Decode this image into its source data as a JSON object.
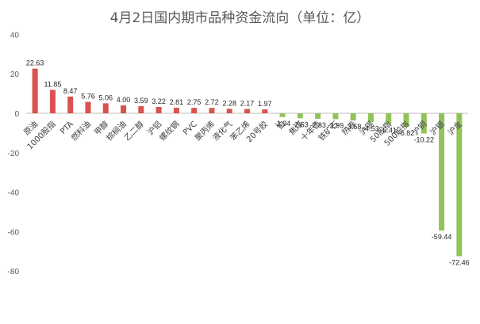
{
  "chart_data": {
    "type": "bar",
    "title": "4月2日国内期市品种资金流向（单位：亿）",
    "categories": [
      "原油",
      "1000股指",
      "PTA",
      "燃料油",
      "甲醇",
      "棕榈油",
      "乙二醇",
      "沪铝",
      "螺纹钢",
      "PVC",
      "聚丙烯",
      "液化气",
      "苯乙烯",
      "20号胶",
      "铂",
      "焦煤",
      "十年债",
      "铁矿石",
      "热卷",
      "沪锡",
      "50股指",
      "500股指",
      "沪铜",
      "沪银",
      "沪金"
    ],
    "values": [
      22.63,
      11.85,
      8.47,
      5.76,
      5.06,
      4.0,
      3.59,
      3.22,
      2.81,
      2.75,
      2.72,
      2.28,
      2.17,
      1.97,
      -1.94,
      -2.53,
      -2.83,
      -2.99,
      -3.68,
      -4.53,
      -5.41,
      -6.82,
      -10.22,
      -59.44,
      -72.46
    ],
    "value_labels": [
      "22.63",
      "11.85",
      "8.47",
      "5.76",
      "5.06",
      "4.00",
      "3.59",
      "3.22",
      "2.81",
      "2.75",
      "2.72",
      "2.28",
      "2.17",
      "1.97",
      "-1.94",
      "-2.53",
      "-2.83",
      "-2.99",
      "-3.68",
      "-4.53",
      "-5.41",
      "-6.82",
      "-10.22",
      "-59.44",
      "-72.46"
    ],
    "yticks": [
      40,
      20,
      0,
      -20,
      -40,
      -60,
      -80
    ],
    "ylim": [
      -80,
      40
    ],
    "xlabel": "",
    "ylabel": "",
    "grid": false,
    "colors": {
      "positive": "#d9534f",
      "negative": "#92c35b",
      "axis": "#bfbfbf"
    }
  }
}
